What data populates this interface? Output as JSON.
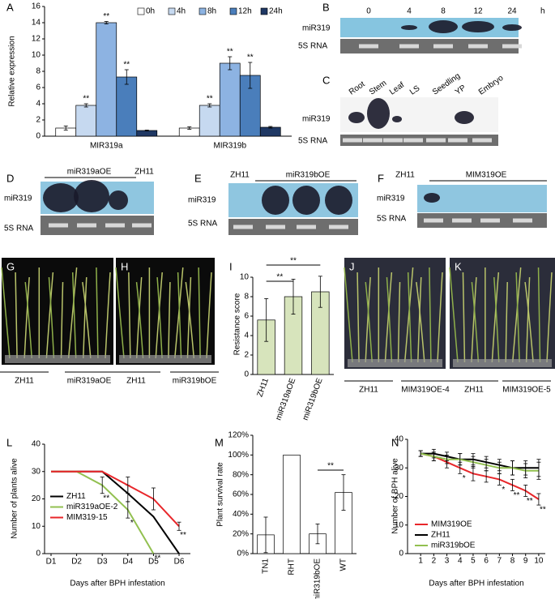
{
  "chart_data": [
    {
      "type": "bar",
      "panel": "A",
      "ylabel": "Relative expression",
      "categories": [
        "MIR319a",
        "MIR319b"
      ],
      "series": [
        {
          "name": "0h",
          "color": "#ffffff",
          "values": [
            1,
            1
          ],
          "errors": [
            0.25,
            0.15
          ]
        },
        {
          "name": "4h",
          "color": "#c6d9f0",
          "values": [
            3.8,
            3.8
          ],
          "errors": [
            0.2,
            0.2
          ],
          "significance": [
            "**",
            "**"
          ]
        },
        {
          "name": "8h",
          "color": "#8db3e2",
          "values": [
            14,
            9
          ],
          "errors": [
            0.15,
            0.8
          ],
          "significance": [
            "**",
            "**"
          ]
        },
        {
          "name": "12h",
          "color": "#4a7ebb",
          "values": [
            7.3,
            7.5
          ],
          "errors": [
            0.9,
            1.6
          ],
          "significance": [
            "**",
            "**"
          ]
        },
        {
          "name": "24h",
          "color": "#1f3864",
          "values": [
            0.7,
            1.1
          ],
          "errors": [
            0.05,
            0.1
          ]
        }
      ],
      "ylim": [
        0,
        16
      ],
      "yticks": [
        0,
        2,
        4,
        6,
        8,
        10,
        12,
        14,
        16
      ],
      "legend": "top-right"
    },
    {
      "type": "bar",
      "panel": "I",
      "ylabel": "Resistance score",
      "categories": [
        "ZH11",
        "miR319aOE",
        "miR319bOE"
      ],
      "values": [
        5.6,
        8,
        8.5
      ],
      "errors": [
        2.2,
        1.8,
        1.6
      ],
      "color": "#d7e4bc",
      "ylim": [
        0,
        10
      ],
      "yticks": [
        0,
        2,
        4,
        6,
        8,
        10
      ],
      "significance_brackets": [
        "**",
        "**"
      ]
    },
    {
      "type": "line",
      "panel": "L",
      "ylabel": "Number of plants alive",
      "xlabel": "Days after BPH infestation",
      "categories": [
        "D1",
        "D2",
        "D3",
        "D4",
        "D5",
        "D6"
      ],
      "series": [
        {
          "name": "ZH11",
          "color": "#000000",
          "values": [
            30,
            30,
            30,
            22,
            13.5,
            0
          ],
          "errors": [
            null,
            null,
            null,
            3,
            null,
            null
          ]
        },
        {
          "name": "miR319aOE-2",
          "color": "#92c050",
          "values": [
            30,
            30,
            25,
            16,
            0,
            null
          ],
          "errors": [
            null,
            null,
            3,
            3,
            null,
            null
          ],
          "significance": [
            null,
            null,
            "**",
            "*",
            "**",
            null
          ]
        },
        {
          "name": "MIM319-15",
          "color": "#e8262a",
          "values": [
            30,
            30,
            30,
            25,
            20,
            10
          ],
          "errors": [
            null,
            null,
            null,
            3,
            4,
            1.5
          ],
          "significance": [
            null,
            null,
            null,
            null,
            null,
            "**"
          ]
        }
      ],
      "ylim": [
        0,
        40
      ],
      "yticks": [
        0,
        10,
        20,
        30,
        40
      ],
      "legend": "center-left"
    },
    {
      "type": "bar",
      "panel": "M",
      "ylabel": "Plant survival rate",
      "categories": [
        "TN1",
        "RHT",
        "miR319bOE",
        "WT"
      ],
      "values": [
        19,
        100,
        20,
        62
      ],
      "errors": [
        18,
        null,
        10,
        18
      ],
      "color": "#ffffff",
      "ylim": [
        0,
        120
      ],
      "yticks": [
        {
          "value": 0,
          "label": "0%"
        },
        {
          "value": 20,
          "label": "20%"
        },
        {
          "value": 40,
          "label": "40%"
        },
        {
          "value": 60,
          "label": "60%"
        },
        {
          "value": 80,
          "label": "80%"
        },
        {
          "value": 100,
          "label": "100%"
        },
        {
          "value": 120,
          "label": "120%"
        }
      ],
      "significance_brackets": [
        "**"
      ]
    },
    {
      "type": "line",
      "panel": "N",
      "ylabel": "Number of BPH alive",
      "xlabel": "Days after BPH infestation",
      "x": [
        1,
        2,
        3,
        4,
        5,
        6,
        7,
        8,
        9,
        10
      ],
      "series": [
        {
          "name": "MIM319OE",
          "color": "#e8262a",
          "values": [
            35,
            34,
            32,
            30,
            28,
            27,
            26,
            24,
            22,
            19
          ],
          "errors": [
            1,
            1.5,
            2,
            2,
            2.5,
            2,
            2,
            2,
            2,
            2
          ],
          "significance": [
            null,
            null,
            null,
            "*",
            null,
            null,
            "*",
            "**",
            "**",
            "**"
          ]
        },
        {
          "name": "ZH11",
          "color": "#000000",
          "values": [
            35,
            35,
            34,
            33,
            33,
            32,
            31,
            30,
            30,
            30
          ],
          "errors": [
            1,
            1.5,
            1.5,
            2,
            2,
            2,
            2,
            2.5,
            2.5,
            3
          ]
        },
        {
          "name": "miR319bOE",
          "color": "#92c050",
          "values": [
            35,
            34,
            33,
            33,
            32,
            31,
            30,
            30,
            29,
            29
          ],
          "errors": [
            1,
            1.5,
            1.5,
            2,
            2,
            2,
            2,
            2.5,
            2.5,
            3
          ]
        }
      ],
      "xlim": [
        0,
        10.5
      ],
      "xticks": [
        1,
        2,
        3,
        4,
        5,
        6,
        7,
        8,
        9,
        10
      ],
      "ylim": [
        0,
        40
      ],
      "yticks": [
        0,
        10,
        20,
        30,
        40
      ],
      "legend": "bottom-left"
    }
  ],
  "blots": [
    {
      "panel": "B",
      "lanes": [
        "0",
        "4",
        "8",
        "12",
        "24"
      ],
      "unit": "h",
      "rows": [
        "miR319",
        "5S RNA"
      ]
    },
    {
      "panel": "C",
      "lanes": [
        "Root",
        "Stem",
        "Leaf",
        "LS",
        "Seedling",
        "YP",
        "Embryo"
      ],
      "rows": [
        "miR319",
        "5S RNA"
      ]
    },
    {
      "panel": "D",
      "groups": [
        "miR319aOE",
        "ZH11"
      ],
      "rows": [
        "miR319",
        "5S RNA"
      ]
    },
    {
      "panel": "E",
      "groups": [
        "ZH11",
        "miR319bOE"
      ],
      "rows": [
        "miR319",
        "5S RNA"
      ]
    },
    {
      "panel": "F",
      "groups": [
        "ZH11",
        "MIM319OE"
      ],
      "rows": [
        "miR319",
        "5S RNA"
      ]
    }
  ],
  "photos": [
    {
      "panel": "G",
      "labels": [
        "ZH11",
        "miR319aOE"
      ]
    },
    {
      "panel": "H",
      "labels": [
        "ZH11",
        "miR319bOE"
      ]
    },
    {
      "panel": "J",
      "labels": [
        "ZH11",
        "MIM319OE-4"
      ]
    },
    {
      "panel": "K",
      "labels": [
        "ZH11",
        "MIM319OE-5"
      ]
    }
  ]
}
